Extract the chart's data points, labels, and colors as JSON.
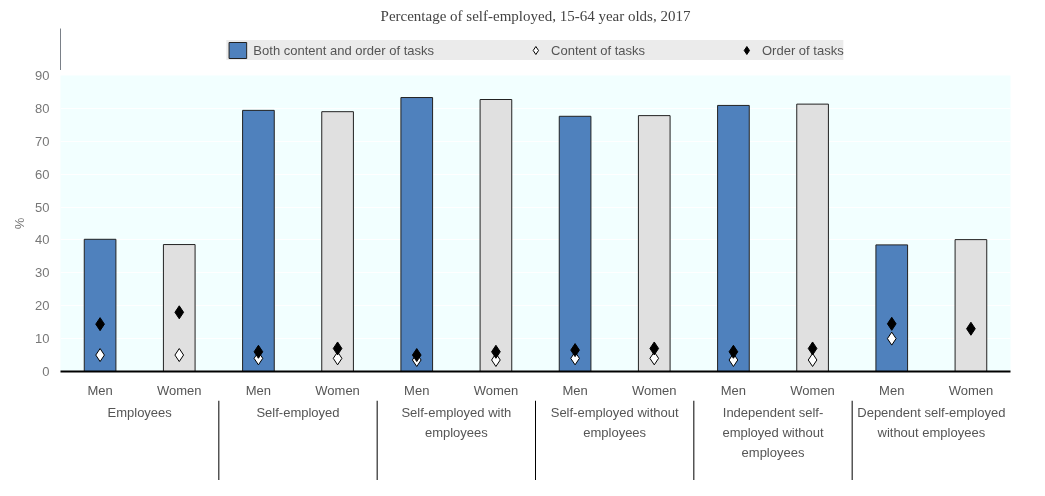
{
  "chart_data": {
    "type": "bar",
    "title": "Percentage of self-employed, 15-64 year olds, 2017",
    "ylabel": "%",
    "categories": [
      "Men",
      "Women",
      "Men",
      "Women",
      "Men",
      "Women",
      "Men",
      "Women",
      "Men",
      "Women",
      "Men",
      "Women"
    ],
    "annotations": [
      "Employees",
      "Self-employed",
      "Self-employed with employees",
      "Self-employed without employees",
      "Independent self-employed without employees",
      "Dependent self-employed without employees"
    ],
    "series": [
      {
        "name": "Both content and order of tasks",
        "colors": [
          "#4f81bd",
          "#e0e0e0",
          "#4f81bd",
          "#e0e0e0",
          "#4f81bd",
          "#e0e0e0",
          "#4f81bd",
          "#e0e0e0",
          "#4f81bd",
          "#e0e0e0",
          "#4f81bd",
          "#e0e0e0"
        ],
        "values": [
          40.2,
          38.6,
          79.4,
          79.0,
          83.3,
          82.7,
          77.6,
          77.8,
          80.9,
          81.3,
          38.5,
          40.1
        ]
      },
      {
        "name": "Content of tasks",
        "type": "scatter",
        "marker": "diamond",
        "color": "#ffffff",
        "values": [
          5,
          5,
          4,
          4,
          3.5,
          3.5,
          4,
          4,
          3.5,
          3.5,
          10,
          null
        ]
      },
      {
        "name": "Order of tasks",
        "type": "scatter",
        "marker": "diamond",
        "color": "#000000",
        "values": [
          14.4,
          18.0,
          6,
          7,
          5,
          6,
          6.5,
          7,
          6,
          7,
          14.5,
          13
        ]
      }
    ],
    "ylim": [
      0,
      90
    ],
    "yticks": [
      0,
      10,
      20,
      30,
      40,
      50,
      60,
      70,
      80,
      90
    ],
    "grid": "y",
    "legend": "top"
  }
}
